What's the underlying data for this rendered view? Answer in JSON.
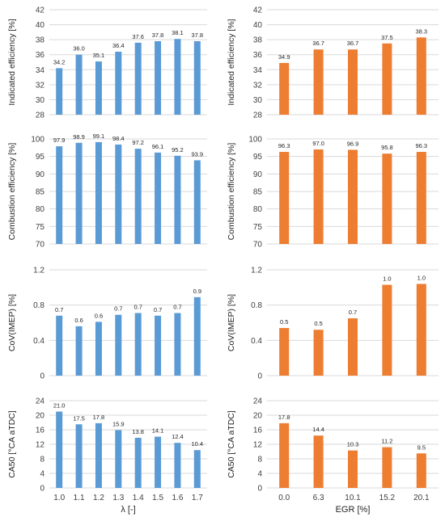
{
  "chart_data": [
    {
      "type": "bar",
      "ylabel": "Indicated efficiency [%]",
      "xlabel": "",
      "categories": [
        "1.0",
        "1.1",
        "1.2",
        "1.3",
        "1.4",
        "1.5",
        "1.6",
        "1.7"
      ],
      "values": [
        34.2,
        36.0,
        35.1,
        36.4,
        37.6,
        37.8,
        38.1,
        37.8
      ],
      "value_labels": [
        "34.2",
        "36.0",
        "35.1",
        "36.4",
        "37.6",
        "37.8",
        "38.1",
        "37.8"
      ],
      "ylim": [
        28,
        42
      ],
      "yticks": [
        "28",
        "30",
        "32",
        "34",
        "36",
        "38",
        "40",
        "42"
      ],
      "show_x_tick_labels": false,
      "grid": true,
      "color": "#5b9bd5"
    },
    {
      "type": "bar",
      "ylabel": "Indicated efficiency [%]",
      "xlabel": "",
      "categories": [
        "0.0",
        "6.3",
        "10.1",
        "15.2",
        "20.1"
      ],
      "values": [
        34.9,
        36.7,
        36.7,
        37.5,
        38.3
      ],
      "value_labels": [
        "34.9",
        "36.7",
        "36.7",
        "37.5",
        "38.3"
      ],
      "ylim": [
        28,
        42
      ],
      "yticks": [
        "28",
        "30",
        "32",
        "34",
        "36",
        "38",
        "40",
        "42"
      ],
      "show_x_tick_labels": false,
      "grid": true,
      "color": "#ed7d31"
    },
    {
      "type": "bar",
      "ylabel": "Combustion efficiency [%]",
      "xlabel": "",
      "categories": [
        "1.0",
        "1.1",
        "1.2",
        "1.3",
        "1.4",
        "1.5",
        "1.6",
        "1.7"
      ],
      "values": [
        97.9,
        98.9,
        99.1,
        98.4,
        97.2,
        96.1,
        95.2,
        93.9
      ],
      "value_labels": [
        "97.9",
        "98.9",
        "99.1",
        "98.4",
        "97.2",
        "96.1",
        "95.2",
        "93.9"
      ],
      "ylim": [
        70,
        100
      ],
      "yticks": [
        "70",
        "75",
        "80",
        "85",
        "90",
        "95",
        "100"
      ],
      "show_x_tick_labels": false,
      "grid": true,
      "color": "#5b9bd5"
    },
    {
      "type": "bar",
      "ylabel": "Combustion efficiency [%]",
      "xlabel": "",
      "categories": [
        "0.0",
        "6.3",
        "10.1",
        "15.2",
        "20.1"
      ],
      "values": [
        96.3,
        97.0,
        96.9,
        95.8,
        96.3
      ],
      "value_labels": [
        "96.3",
        "97.0",
        "96.9",
        "95.8",
        "96.3"
      ],
      "ylim": [
        70,
        100
      ],
      "yticks": [
        "70",
        "75",
        "80",
        "85",
        "90",
        "95",
        "100"
      ],
      "show_x_tick_labels": false,
      "grid": true,
      "color": "#ed7d31"
    },
    {
      "type": "bar",
      "ylabel": "CoV(IMEP) [%]",
      "xlabel": "",
      "categories": [
        "1.0",
        "1.1",
        "1.2",
        "1.3",
        "1.4",
        "1.5",
        "1.6",
        "1.7"
      ],
      "values": [
        0.68,
        0.56,
        0.61,
        0.69,
        0.71,
        0.68,
        0.71,
        0.89
      ],
      "value_labels": [
        "0.7",
        "0.6",
        "0.6",
        "0.7",
        "0.7",
        "0.7",
        "0.7",
        "0.9"
      ],
      "ylim": [
        0,
        1.2
      ],
      "yticks": [
        "0",
        "0.4",
        "0.8",
        "1.2"
      ],
      "show_x_tick_labels": false,
      "grid": true,
      "color": "#5b9bd5"
    },
    {
      "type": "bar",
      "ylabel": "CoV(IMEP) [%]",
      "xlabel": "",
      "categories": [
        "0.0",
        "6.3",
        "10.1",
        "15.2",
        "20.1"
      ],
      "values": [
        0.54,
        0.52,
        0.65,
        1.03,
        1.04
      ],
      "value_labels": [
        "0.5",
        "0.5",
        "0.7",
        "1.0",
        "1.0"
      ],
      "ylim": [
        0,
        1.2
      ],
      "yticks": [
        "0",
        "0.4",
        "0.8",
        "1.2"
      ],
      "show_x_tick_labels": false,
      "grid": true,
      "color": "#ed7d31"
    },
    {
      "type": "bar",
      "ylabel": "CA50 [°CA aTDC]",
      "xlabel": "λ [-]",
      "categories": [
        "1.0",
        "1.1",
        "1.2",
        "1.3",
        "1.4",
        "1.5",
        "1.6",
        "1.7"
      ],
      "values": [
        21.0,
        17.5,
        17.8,
        15.9,
        13.8,
        14.1,
        12.4,
        10.4
      ],
      "value_labels": [
        "21.0",
        "17.5",
        "17.8",
        "15.9",
        "13.8",
        "14.1",
        "12.4",
        "10.4"
      ],
      "ylim": [
        0,
        24
      ],
      "yticks": [
        "0",
        "4",
        "8",
        "12",
        "16",
        "20",
        "24"
      ],
      "show_x_tick_labels": true,
      "grid": true,
      "color": "#5b9bd5"
    },
    {
      "type": "bar",
      "ylabel": "CA50 [°CA aTDC]",
      "xlabel": "EGR [%]",
      "categories": [
        "0.0",
        "6.3",
        "10.1",
        "15.2",
        "20.1"
      ],
      "values": [
        17.8,
        14.4,
        10.3,
        11.2,
        9.5
      ],
      "value_labels": [
        "17.8",
        "14.4",
        "10.3",
        "11.2",
        "9.5"
      ],
      "ylim": [
        0,
        24
      ],
      "yticks": [
        "0",
        "4",
        "8",
        "12",
        "16",
        "20",
        "24"
      ],
      "show_x_tick_labels": true,
      "grid": true,
      "color": "#ed7d31"
    }
  ]
}
